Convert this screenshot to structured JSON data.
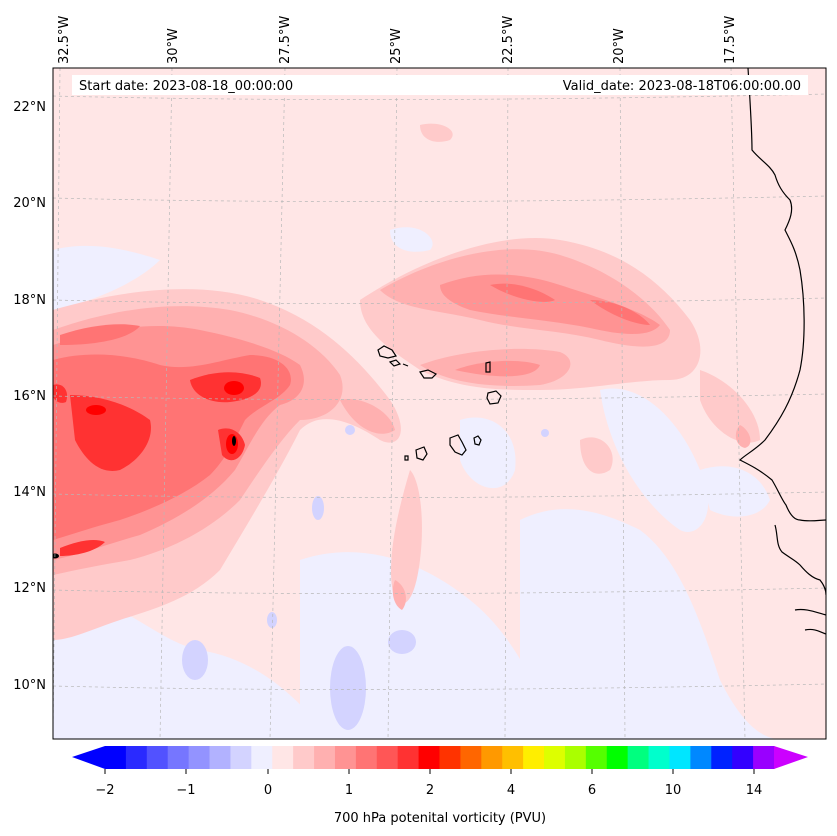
{
  "map": {
    "header": {
      "start_date": "Start date: 2023-08-18_00:00:00",
      "valid_date": "Valid_date: 2023-08-18T06:00:00.00"
    },
    "longitude_labels": [
      "32.5°W",
      "30°W",
      "27.5°W",
      "25°W",
      "22.5°W",
      "20°W",
      "17.5°W"
    ],
    "latitude_labels": [
      "22°N",
      "20°N",
      "18°N",
      "16°N",
      "14°N",
      "12°N",
      "10°N"
    ],
    "colorbar": {
      "title": "700 hPa potenital vorticity (PVU)",
      "tick_labels": [
        "−2",
        "−1",
        "0",
        "1",
        "2",
        "4",
        "6",
        "10",
        "14"
      ],
      "colors": [
        "#0000ff",
        "#2a2aff",
        "#5252ff",
        "#7676ff",
        "#9393ff",
        "#b2b2ff",
        "#d3d3ff",
        "#efefff",
        "#ffe6e6",
        "#ffcaca",
        "#ffb0b0",
        "#ff9393",
        "#ff7474",
        "#ff5656",
        "#ff3232",
        "#ff0000",
        "#ff3300",
        "#ff6600",
        "#ff9900",
        "#ffbf00",
        "#ffee00",
        "#ddff00",
        "#aaff00",
        "#55ff00",
        "#00ff00",
        "#00ff7f",
        "#00ffcc",
        "#00e6ff",
        "#0088ff",
        "#0022ff",
        "#3300ff",
        "#9900ff"
      ],
      "under_color": "#0000ff",
      "over_color": "#cc00ff"
    },
    "palette": {
      "background": "#ffe6e6",
      "slightly_negative": "#efefff",
      "negative": "#d3d3ff",
      "light_pink": "#ffcaca",
      "pink": "#ffb0b0",
      "salmon": "#ff9393",
      "red_light": "#ff7474",
      "red": "#ff3232",
      "red_strong": "#ff0000",
      "max": "#000000",
      "coast": "#000000"
    }
  }
}
